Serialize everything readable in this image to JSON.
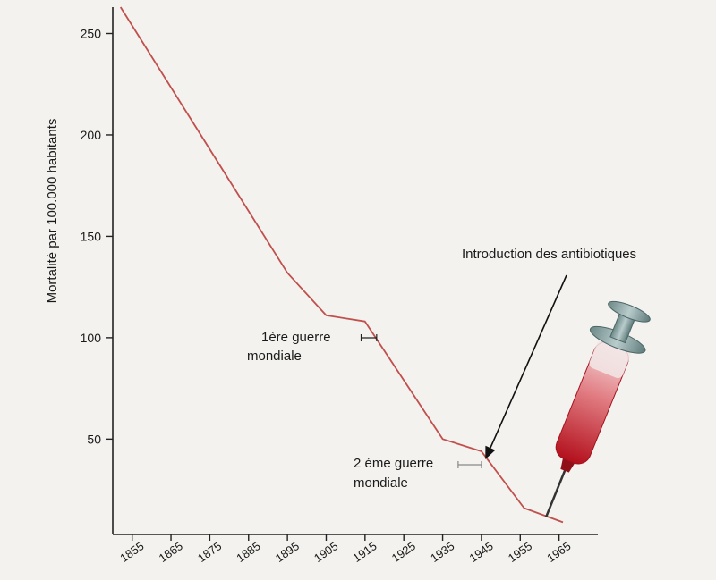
{
  "chart_data": {
    "type": "line",
    "title": "",
    "xlabel": "",
    "ylabel": "Mortalité par 100.000 habitants",
    "xlim": [
      1850,
      1975
    ],
    "ylim": [
      3,
      263
    ],
    "xticks": [
      "1855",
      "1865",
      "1875",
      "1885",
      "1895",
      "1905",
      "1915",
      "1925",
      "1935",
      "1945",
      "1955",
      "1965"
    ],
    "yticks": [
      "250",
      "200",
      "150",
      "100",
      "50"
    ],
    "grid": false,
    "series": [
      {
        "color": "#c0504d",
        "x": [
          1852,
          1895,
          1905,
          1915,
          1935,
          1945,
          1956,
          1966
        ],
        "y": [
          263,
          132,
          111,
          108,
          50,
          44,
          16,
          9
        ]
      }
    ],
    "annotations": {
      "war1": {
        "line1": "1ère guerre",
        "line2": "mondiale",
        "range": [
          1914,
          1918
        ]
      },
      "war2": {
        "line1": "2 éme guerre",
        "line2": "mondiale",
        "range": [
          1939,
          1945
        ]
      },
      "antibiotics": {
        "text": "Introduction des antibiotiques",
        "arrow_target": [
          1946,
          40
        ]
      }
    }
  },
  "icons": {
    "syringe": "syringe-icon"
  }
}
